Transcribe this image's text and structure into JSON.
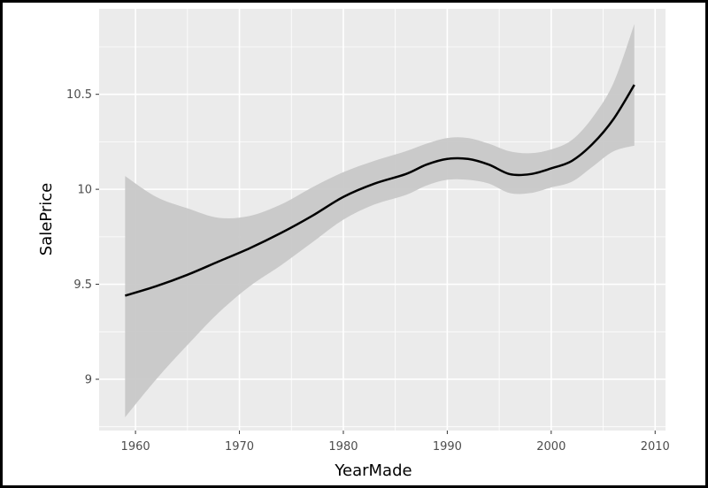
{
  "chart_data": {
    "type": "line",
    "title": "",
    "xlabel": "YearMade",
    "ylabel": "SalePrice",
    "xlim": [
      1956.5,
      2011
    ],
    "ylim": [
      8.73,
      10.95
    ],
    "x_ticks": [
      1960,
      1970,
      1980,
      1990,
      2000,
      2010
    ],
    "x_tick_labels": [
      "1960",
      "1970",
      "1980",
      "1990",
      "2000",
      "2010"
    ],
    "y_ticks": [
      9,
      9.5,
      10,
      10.5
    ],
    "y_tick_labels": [
      "9",
      "9.5",
      "10",
      "10.5"
    ],
    "grid": true,
    "legend": "none",
    "series": [
      {
        "kind": "smooth-fit",
        "x": [
          1959,
          1962,
          1965,
          1968,
          1971,
          1974,
          1977,
          1980,
          1983,
          1986,
          1988,
          1990,
          1992,
          1994,
          1996,
          1998,
          2000,
          2002,
          2004,
          2006,
          2008
        ],
        "y": [
          9.44,
          9.49,
          9.55,
          9.62,
          9.69,
          9.77,
          9.86,
          9.96,
          10.03,
          10.08,
          10.13,
          10.16,
          10.16,
          10.13,
          10.08,
          10.08,
          10.11,
          10.15,
          10.24,
          10.37,
          10.55
        ],
        "lower": [
          8.8,
          9.0,
          9.18,
          9.35,
          9.49,
          9.6,
          9.72,
          9.84,
          9.92,
          9.97,
          10.02,
          10.05,
          10.05,
          10.03,
          9.98,
          9.98,
          10.01,
          10.04,
          10.12,
          10.2,
          10.23
        ],
        "upper": [
          10.07,
          9.96,
          9.9,
          9.85,
          9.86,
          9.92,
          10.01,
          10.09,
          10.15,
          10.2,
          10.24,
          10.27,
          10.27,
          10.24,
          10.2,
          10.19,
          10.21,
          10.26,
          10.38,
          10.56,
          10.87
        ]
      }
    ]
  },
  "colors": {
    "panel": "#ebebeb",
    "grid": "#ffffff",
    "line": "#000000",
    "ribbon": "#c8c8c8",
    "tick_text": "#4d4d4d"
  }
}
